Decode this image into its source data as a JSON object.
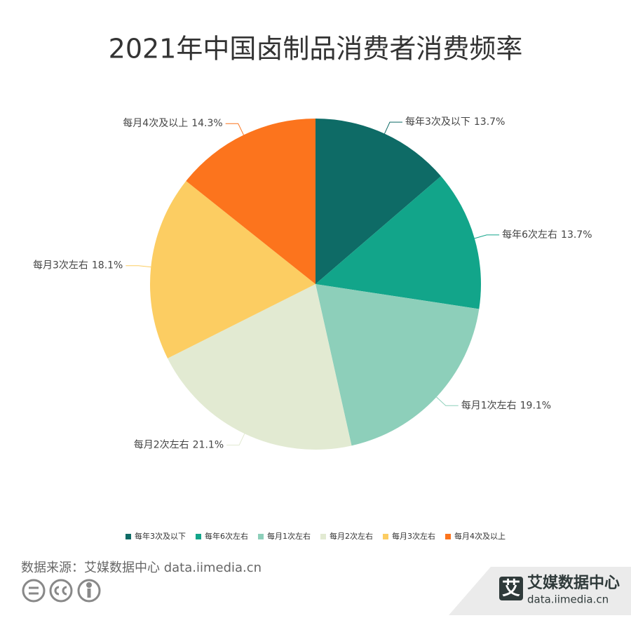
{
  "chart_data": {
    "type": "pie",
    "title": "2021年中国卤制品消费者消费频率",
    "categories": [
      "每年3次及以下",
      "每年6次左右",
      "每月1次左右",
      "每月2次左右",
      "每月3次左右",
      "每月4次及以上"
    ],
    "values": [
      13.7,
      13.7,
      19.1,
      21.1,
      18.1,
      14.3
    ],
    "value_labels": [
      "13.7%",
      "13.7%",
      "19.1%",
      "21.1%",
      "18.1%",
      "14.3%"
    ],
    "colors": [
      "#0e6b66",
      "#12a58a",
      "#8dcfba",
      "#e2ead2",
      "#fccd62",
      "#fc741d"
    ],
    "legend": "bottom"
  },
  "source": "数据来源：艾媒数据中心 data.iimedia.cn",
  "logo": {
    "mark": "艾",
    "name": "艾媒数据中心",
    "url": "data.iimedia.cn"
  }
}
